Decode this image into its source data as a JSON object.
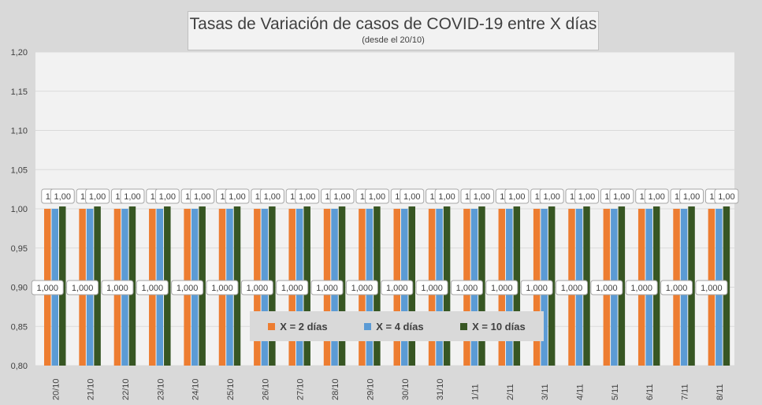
{
  "chart_data": {
    "type": "bar",
    "title": "Tasas de Variación de casos de COVID-19 entre X días",
    "subtitle": "(desde el 20/10)",
    "categories": [
      "20/10",
      "21/10",
      "22/10",
      "23/10",
      "24/10",
      "25/10",
      "26/10",
      "27/10",
      "28/10",
      "29/10",
      "30/10",
      "31/10",
      "1/11",
      "2/11",
      "3/11",
      "4/11",
      "5/11",
      "6/11",
      "7/11",
      "8/11"
    ],
    "series": [
      {
        "name": "X = 2 días",
        "color": "#ed7d31",
        "values": [
          1.0,
          1.0,
          1.0,
          1.0,
          1.0,
          1.0,
          1.0,
          1.0,
          1.0,
          1.0,
          1.0,
          1.0,
          1.0,
          1.0,
          1.0,
          1.0,
          1.0,
          1.0,
          1.0,
          1.0
        ],
        "labels": [
          "1,000",
          "1,000",
          "1,000",
          "1,000",
          "1,000",
          "1,000",
          "1,000",
          "1,000",
          "1,000",
          "1,000",
          "1,000",
          "1,000",
          "1,000",
          "1,000",
          "1,000",
          "1,000",
          "1,000",
          "1,000",
          "1,000",
          "1,000"
        ]
      },
      {
        "name": "X = 4 días",
        "color": "#5b9bd5",
        "values": [
          1.0,
          1.0,
          1.0,
          1.0,
          1.0,
          1.0,
          1.0,
          1.0,
          1.0,
          1.0,
          1.0,
          1.0,
          1.0,
          1.0,
          1.0,
          1.0,
          1.0,
          1.0,
          1.0,
          1.0
        ],
        "labels": [
          "1",
          "1",
          "1",
          "1",
          "1",
          "1",
          "1",
          "1",
          "1",
          "1",
          "1",
          "1",
          "1",
          "1",
          "1",
          "1",
          "1",
          "1",
          "1",
          "1"
        ]
      },
      {
        "name": "X = 10 días",
        "color": "#375623",
        "values": [
          1.003,
          1.003,
          1.003,
          1.003,
          1.003,
          1.003,
          1.003,
          1.003,
          1.003,
          1.003,
          1.003,
          1.003,
          1.003,
          1.003,
          1.003,
          1.003,
          1.003,
          1.003,
          1.003,
          1.003
        ],
        "labels": [
          "1,00",
          "1,00",
          "1,00",
          "1,00",
          "1,00",
          "1,00",
          "1,00",
          "1,00",
          "1,00",
          "1,00",
          "1,00",
          "1,00",
          "1,00",
          "1,00",
          "1,00",
          "1,00",
          "1,00",
          "1,00",
          "1,00",
          "1,00"
        ]
      }
    ],
    "ylim": [
      0.8,
      1.2
    ],
    "yticks": [
      "0,80",
      "0,85",
      "0,90",
      "0,95",
      "1,00",
      "1,05",
      "1,10",
      "1,15",
      "1,20"
    ],
    "grid": true,
    "legend": "bottom-center"
  }
}
